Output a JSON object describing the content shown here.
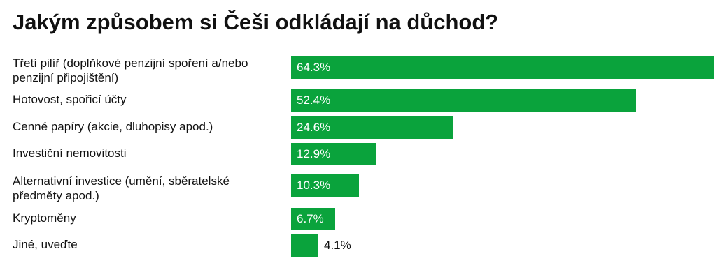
{
  "title": "Jakým způsobem si Češi odkládají na důchod?",
  "colors": {
    "bar": "#0aa33c",
    "label_inside": "#ffffff",
    "label_outside": "#111111"
  },
  "chart_data": {
    "type": "bar",
    "orientation": "horizontal",
    "title": "Jakým způsobem si Češi odkládají na důchod?",
    "categories": [
      "Třetí pilíř (doplňkové penzijní spoření a/nebo penzijní připojištění)",
      "Hotovost, spořicí účty",
      "Cenné papíry (akcie, dluhopisy apod.)",
      "Investiční nemovitosti",
      "Alternativní investice (umění, sběratelské předměty apod.)",
      "Kryptoměny",
      "Jiné, uveďte"
    ],
    "values": [
      64.3,
      52.4,
      24.6,
      12.9,
      10.3,
      6.7,
      4.1
    ],
    "value_labels": [
      "64.3%",
      "52.4%",
      "24.6%",
      "12.9%",
      "10.3%",
      "6.7%",
      "4.1%"
    ],
    "unit": "%",
    "xlim": [
      0,
      64.3
    ],
    "grid": false,
    "legend": "none"
  }
}
